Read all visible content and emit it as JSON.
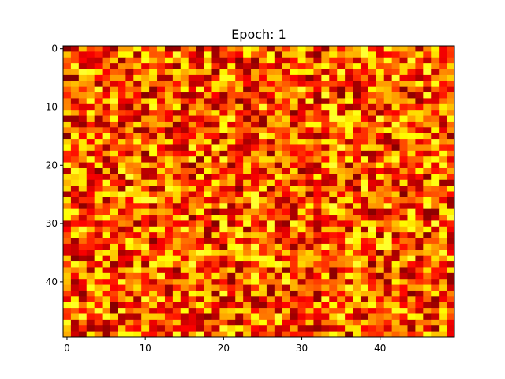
{
  "chart_data": {
    "type": "heatmap",
    "title": "Epoch: 1",
    "xlabel": "",
    "ylabel": "",
    "colormap": "hot",
    "rows": 50,
    "cols": 50,
    "xlim": [
      -0.5,
      49.5
    ],
    "ylim": [
      49.5,
      -0.5
    ],
    "x_ticks": [
      0,
      10,
      20,
      30,
      40
    ],
    "y_ticks": [
      0,
      10,
      20,
      30,
      40
    ],
    "value_range": [
      0,
      1
    ],
    "data_generation": "uniform random noise in [0,1]; individual cell values not legible",
    "grid": false,
    "legend": "none"
  }
}
